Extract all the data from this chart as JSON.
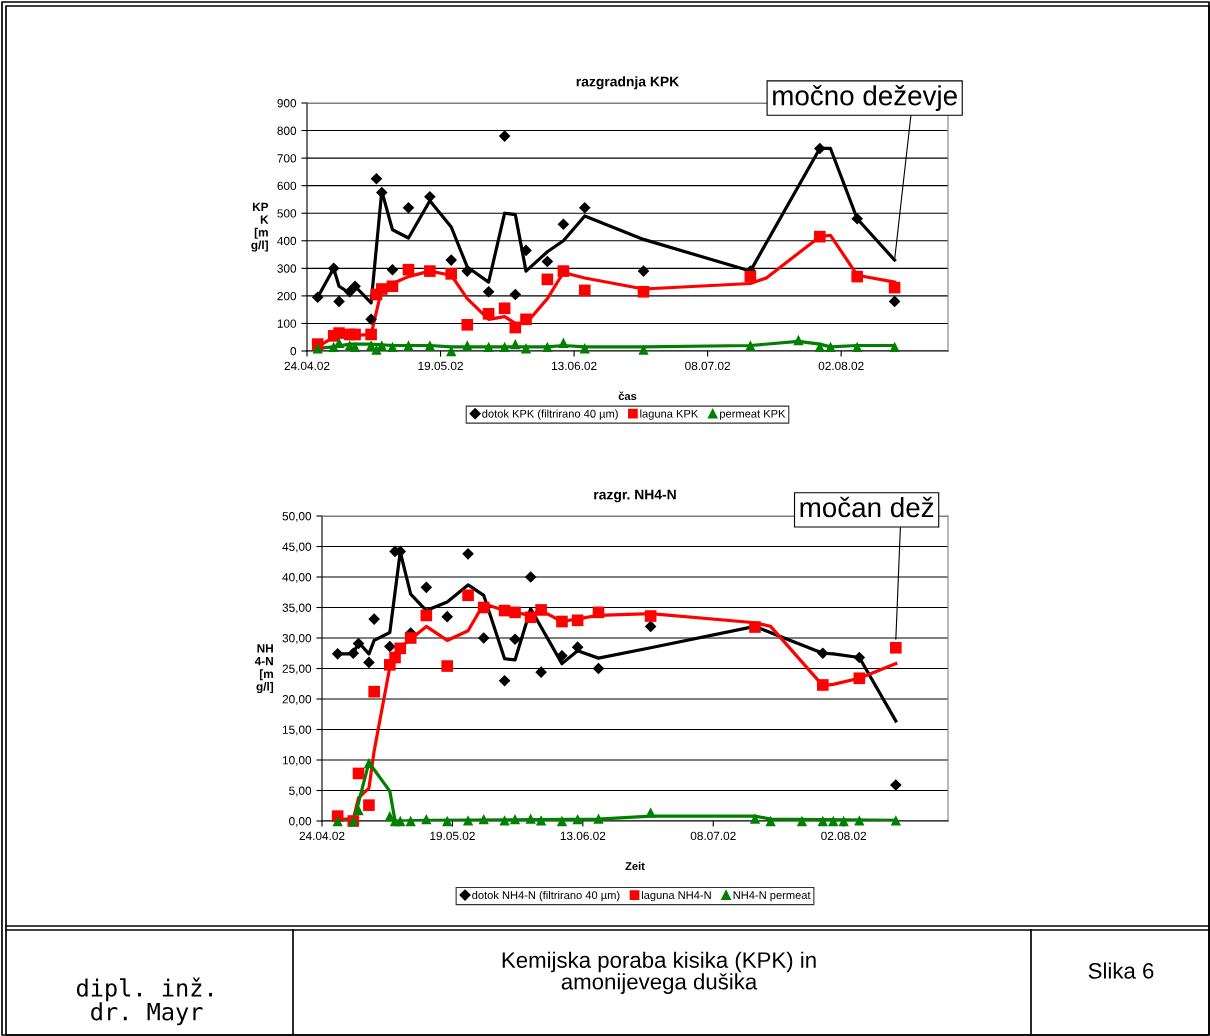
{
  "chart_data": [
    {
      "type": "scatter",
      "title": "razgradnja KPK",
      "xlabel": "čas",
      "ylabel": "KP\nK\n[m\ng/l]",
      "xlim": [
        "2002-04-24",
        "2002-08-22"
      ],
      "ylim": [
        0,
        900
      ],
      "yticks": [
        0,
        100,
        200,
        300,
        400,
        500,
        600,
        700,
        800,
        900
      ],
      "xticks": [
        {
          "value": "2002-04-24",
          "label": "24.04.02"
        },
        {
          "value": "2002-05-19",
          "label": "19.05.02"
        },
        {
          "value": "2002-06-13",
          "label": "13.06.02"
        },
        {
          "value": "2002-07-08",
          "label": "08.07.02"
        },
        {
          "value": "2002-08-02",
          "label": "02.08.02"
        }
      ],
      "grid": "y",
      "legend": "bottom",
      "annotations": [
        {
          "text": "močno deževje",
          "x": "2002-08-12",
          "y": 330
        }
      ],
      "series": [
        {
          "type": "scatter",
          "name": "dotok KPK (filtrirano 40 µm)",
          "color": "#000000",
          "marker": "diamond",
          "x": [
            "2002-04-26",
            "2002-04-29",
            "2002-04-30",
            "2002-05-02",
            "2002-05-03",
            "2002-05-06",
            "2002-05-07",
            "2002-05-08",
            "2002-05-10",
            "2002-05-13",
            "2002-05-17",
            "2002-05-21",
            "2002-05-24",
            "2002-05-28",
            "2002-05-31",
            "2002-06-02",
            "2002-06-04",
            "2002-06-08",
            "2002-06-11",
            "2002-06-15",
            "2002-06-26",
            "2002-07-16",
            "2002-07-29",
            "2002-08-05",
            "2002-08-12"
          ],
          "values": [
            195,
            300,
            180,
            215,
            235,
            115,
            625,
            575,
            295,
            520,
            560,
            330,
            290,
            215,
            780,
            205,
            365,
            325,
            460,
            520,
            290,
            290,
            735,
            480,
            180
          ]
        },
        {
          "type": "scatter",
          "name": "laguna KPK",
          "color": "#ff0000",
          "marker": "square",
          "x": [
            "2002-04-26",
            "2002-04-29",
            "2002-04-30",
            "2002-05-02",
            "2002-05-03",
            "2002-05-06",
            "2002-05-07",
            "2002-05-08",
            "2002-05-10",
            "2002-05-13",
            "2002-05-17",
            "2002-05-21",
            "2002-05-24",
            "2002-05-28",
            "2002-05-31",
            "2002-06-02",
            "2002-06-04",
            "2002-06-08",
            "2002-06-11",
            "2002-06-15",
            "2002-06-26",
            "2002-07-16",
            "2002-07-29",
            "2002-08-05",
            "2002-08-12"
          ],
          "values": [
            25,
            55,
            65,
            60,
            60,
            60,
            205,
            225,
            235,
            295,
            290,
            280,
            95,
            135,
            155,
            85,
            115,
            260,
            290,
            220,
            215,
            270,
            415,
            270,
            230
          ]
        },
        {
          "type": "scatter",
          "name": "permeat KPK",
          "color": "#008000",
          "marker": "triangle",
          "x": [
            "2002-04-26",
            "2002-04-29",
            "2002-04-30",
            "2002-05-02",
            "2002-05-03",
            "2002-05-06",
            "2002-05-07",
            "2002-05-08",
            "2002-05-10",
            "2002-05-13",
            "2002-05-17",
            "2002-05-21",
            "2002-05-24",
            "2002-05-28",
            "2002-05-31",
            "2002-06-02",
            "2002-06-04",
            "2002-06-08",
            "2002-06-11",
            "2002-06-15",
            "2002-06-26",
            "2002-07-16",
            "2002-07-25",
            "2002-07-29",
            "2002-07-31",
            "2002-08-05",
            "2002-08-12"
          ],
          "values": [
            10,
            15,
            30,
            20,
            15,
            20,
            5,
            20,
            15,
            20,
            20,
            0,
            20,
            15,
            15,
            25,
            10,
            15,
            30,
            10,
            5,
            20,
            40,
            15,
            15,
            15,
            15
          ]
        },
        {
          "type": "line",
          "color": "#000000",
          "x": [
            "2002-04-26",
            "2002-04-29",
            "2002-04-30",
            "2002-05-02",
            "2002-05-03",
            "2002-05-06",
            "2002-05-08",
            "2002-05-10",
            "2002-05-13",
            "2002-05-17",
            "2002-05-21",
            "2002-05-24",
            "2002-05-28",
            "2002-05-31",
            "2002-06-02",
            "2002-06-04",
            "2002-06-08",
            "2002-06-11",
            "2002-06-15",
            "2002-06-26",
            "2002-07-16",
            "2002-07-29",
            "2002-07-31",
            "2002-08-05",
            "2002-08-12"
          ],
          "values": [
            195,
            300,
            235,
            210,
            235,
            175,
            580,
            440,
            410,
            545,
            450,
            305,
            250,
            500,
            495,
            290,
            360,
            400,
            490,
            405,
            290,
            735,
            735,
            480,
            330
          ]
        },
        {
          "type": "line",
          "color": "#ff0000",
          "x": [
            "2002-04-26",
            "2002-04-29",
            "2002-05-02",
            "2002-05-06",
            "2002-05-08",
            "2002-05-10",
            "2002-05-13",
            "2002-05-17",
            "2002-05-21",
            "2002-05-24",
            "2002-05-28",
            "2002-05-31",
            "2002-06-02",
            "2002-06-04",
            "2002-06-08",
            "2002-06-11",
            "2002-06-15",
            "2002-06-26",
            "2002-07-16",
            "2002-07-19",
            "2002-07-29",
            "2002-07-31",
            "2002-08-05",
            "2002-08-12"
          ],
          "values": [
            15,
            50,
            55,
            60,
            225,
            245,
            270,
            290,
            275,
            190,
            115,
            125,
            100,
            100,
            190,
            285,
            265,
            225,
            245,
            265,
            415,
            420,
            275,
            250
          ]
        },
        {
          "type": "line",
          "color": "#008000",
          "x": [
            "2002-04-26",
            "2002-04-29",
            "2002-05-02",
            "2002-05-06",
            "2002-05-10",
            "2002-05-17",
            "2002-05-21",
            "2002-05-28",
            "2002-06-04",
            "2002-06-08",
            "2002-06-11",
            "2002-06-15",
            "2002-06-26",
            "2002-07-16",
            "2002-07-25",
            "2002-07-29",
            "2002-07-31",
            "2002-08-05",
            "2002-08-12"
          ],
          "values": [
            10,
            15,
            25,
            25,
            20,
            20,
            15,
            15,
            15,
            15,
            20,
            15,
            15,
            20,
            35,
            25,
            15,
            20,
            20
          ]
        }
      ]
    },
    {
      "type": "scatter",
      "title": "razgr. NH4-N",
      "xlabel": "Zeit",
      "ylabel": "NH\n4-N\n[m\ng/l]",
      "xlim": [
        "2002-04-24",
        "2002-08-22"
      ],
      "ylim": [
        0,
        50
      ],
      "yticks": [
        {
          "value": 0,
          "label": "0,00"
        },
        {
          "value": 5,
          "label": "5,00"
        },
        {
          "value": 10,
          "label": "10,00"
        },
        {
          "value": 15,
          "label": "15,00"
        },
        {
          "value": 20,
          "label": "20,00"
        },
        {
          "value": 25,
          "label": "25,00"
        },
        {
          "value": 30,
          "label": "30,00"
        },
        {
          "value": 35,
          "label": "35,00"
        },
        {
          "value": 40,
          "label": "40,00"
        },
        {
          "value": 45,
          "label": "45,00"
        },
        {
          "value": 50,
          "label": "50,00"
        }
      ],
      "xticks": [
        {
          "value": "2002-04-24",
          "label": "24.04.02"
        },
        {
          "value": "2002-05-19",
          "label": "19.05.02"
        },
        {
          "value": "2002-06-13",
          "label": "13.06.02"
        },
        {
          "value": "2002-07-08",
          "label": "08.07.02"
        },
        {
          "value": "2002-08-02",
          "label": "02.08.02"
        }
      ],
      "grid": "y",
      "legend": "bottom",
      "annotations": [
        {
          "text": "močan dež",
          "x": "2002-08-12",
          "y": 29.8
        }
      ],
      "series": [
        {
          "type": "scatter",
          "name": "dotok NH4-N (filtrirano 40 µm)",
          "color": "#000000",
          "marker": "diamond",
          "x": [
            "2002-04-27",
            "2002-04-30",
            "2002-05-01",
            "2002-05-03",
            "2002-05-04",
            "2002-05-07",
            "2002-05-08",
            "2002-05-09",
            "2002-05-11",
            "2002-05-14",
            "2002-05-18",
            "2002-05-22",
            "2002-05-25",
            "2002-05-29",
            "2002-05-31",
            "2002-06-03",
            "2002-06-05",
            "2002-06-09",
            "2002-06-12",
            "2002-06-16",
            "2002-06-26",
            "2002-07-16",
            "2002-07-29",
            "2002-08-05",
            "2002-08-12"
          ],
          "values": [
            27.4,
            27.5,
            29.1,
            26.0,
            33.1,
            28.6,
            44.2,
            44.2,
            30.8,
            38.3,
            33.5,
            43.8,
            30.0,
            23.0,
            29.8,
            40.0,
            24.4,
            27.1,
            28.5,
            25.0,
            31.9,
            null,
            27.5,
            26.8,
            5.9
          ]
        },
        {
          "type": "scatter",
          "name": "laguna NH4-N",
          "color": "#ff0000",
          "marker": "square",
          "x": [
            "2002-04-27",
            "2002-04-30",
            "2002-05-01",
            "2002-05-03",
            "2002-05-04",
            "2002-05-07",
            "2002-05-08",
            "2002-05-09",
            "2002-05-11",
            "2002-05-14",
            "2002-05-18",
            "2002-05-22",
            "2002-05-25",
            "2002-05-29",
            "2002-05-31",
            "2002-06-03",
            "2002-06-05",
            "2002-06-09",
            "2002-06-12",
            "2002-06-16",
            "2002-06-26",
            "2002-07-16",
            "2002-07-29",
            "2002-08-05",
            "2002-08-12"
          ],
          "values": [
            0.8,
            0.0,
            7.8,
            2.6,
            21.2,
            25.6,
            26.8,
            28.3,
            30.0,
            33.7,
            25.4,
            37.0,
            35.0,
            34.5,
            34.2,
            33.4,
            34.6,
            32.7,
            32.9,
            34.2,
            33.6,
            31.8,
            22.3,
            23.4,
            28.4
          ]
        },
        {
          "type": "scatter",
          "name": "NH4-N permeat",
          "color": "#008000",
          "marker": "triangle",
          "x": [
            "2002-04-27",
            "2002-04-30",
            "2002-05-01",
            "2002-05-03",
            "2002-05-07",
            "2002-05-08",
            "2002-05-09",
            "2002-05-11",
            "2002-05-14",
            "2002-05-18",
            "2002-05-22",
            "2002-05-25",
            "2002-05-29",
            "2002-05-31",
            "2002-06-03",
            "2002-06-05",
            "2002-06-09",
            "2002-06-12",
            "2002-06-16",
            "2002-06-26",
            "2002-07-16",
            "2002-07-19",
            "2002-07-25",
            "2002-07-29",
            "2002-07-31",
            "2002-08-02",
            "2002-08-05",
            "2002-08-12"
          ],
          "values": [
            0.0,
            0.0,
            1.8,
            9.5,
            0.8,
            0.0,
            0.0,
            0.0,
            0.3,
            0.0,
            0.1,
            0.3,
            0.1,
            0.3,
            0.4,
            0.1,
            0.0,
            0.3,
            0.4,
            1.4,
            0.4,
            0.0,
            0.0,
            0.0,
            0.0,
            0.0,
            0.1,
            0.1
          ]
        },
        {
          "type": "line",
          "color": "#000000",
          "x": [
            "2002-04-27",
            "2002-04-30",
            "2002-05-01",
            "2002-05-03",
            "2002-05-04",
            "2002-05-07",
            "2002-05-09",
            "2002-05-11",
            "2002-05-14",
            "2002-05-18",
            "2002-05-22",
            "2002-05-25",
            "2002-05-29",
            "2002-05-31",
            "2002-06-03",
            "2002-06-09",
            "2002-06-12",
            "2002-06-16",
            "2002-06-26",
            "2002-07-16",
            "2002-07-29",
            "2002-07-31",
            "2002-08-05",
            "2002-08-12"
          ],
          "values": [
            27.4,
            27.4,
            29.3,
            27.4,
            29.6,
            30.9,
            44.1,
            37.2,
            34.5,
            35.9,
            38.7,
            37.0,
            26.6,
            26.4,
            34.8,
            25.8,
            27.9,
            26.7,
            28.4,
            31.9,
            27.5,
            27.4,
            26.8,
            16.4
          ]
        },
        {
          "type": "line",
          "color": "#ff0000",
          "x": [
            "2002-04-27",
            "2002-04-30",
            "2002-05-01",
            "2002-05-03",
            "2002-05-04",
            "2002-05-07",
            "2002-05-09",
            "2002-05-11",
            "2002-05-14",
            "2002-05-18",
            "2002-05-22",
            "2002-05-25",
            "2002-05-29",
            "2002-06-03",
            "2002-06-05",
            "2002-06-09",
            "2002-06-16",
            "2002-06-26",
            "2002-07-16",
            "2002-07-19",
            "2002-07-29",
            "2002-07-31",
            "2002-08-05",
            "2002-08-12"
          ],
          "values": [
            0.3,
            0.3,
            3.8,
            5.4,
            11.5,
            25.2,
            28.5,
            29.8,
            31.9,
            29.6,
            31.2,
            35.6,
            34.5,
            33.7,
            34.5,
            32.7,
            33.7,
            34.0,
            32.5,
            31.9,
            22.2,
            22.4,
            23.4,
            25.8
          ]
        },
        {
          "type": "line",
          "color": "#008000",
          "x": [
            "2002-04-27",
            "2002-04-30",
            "2002-05-01",
            "2002-05-03",
            "2002-05-07",
            "2002-05-08",
            "2002-05-14",
            "2002-06-16",
            "2002-06-26",
            "2002-07-16",
            "2002-07-19",
            "2002-08-12"
          ],
          "values": [
            0.0,
            0.0,
            3.0,
            9.6,
            4.9,
            0.0,
            0.1,
            0.3,
            0.8,
            0.8,
            0.3,
            0.1
          ]
        }
      ]
    },
    {
      "type": "other",
      "annotations": [
        "dipl. inž.\ndr. Mayr",
        "Kemijska poraba kisika (KPK) in\namonijevega dušika",
        "Slika 6"
      ]
    }
  ]
}
